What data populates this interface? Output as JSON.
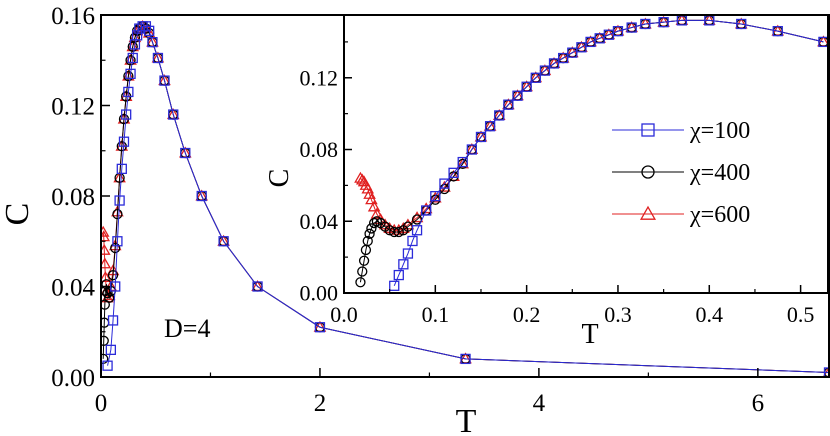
{
  "chart_data": [
    {
      "type": "line",
      "xlabel": "T",
      "ylabel": "C",
      "xlim": [
        0,
        6.65
      ],
      "ylim": [
        0,
        0.16
      ],
      "xticks": [
        0,
        2,
        4,
        6
      ],
      "yticks": [
        0.0,
        0.04,
        0.08,
        0.12,
        0.16
      ],
      "xtick_labels": [
        "0",
        "2",
        "4",
        "6"
      ],
      "ytick_labels": [
        "0.00",
        "0.04",
        "0.08",
        "0.12",
        "0.16"
      ],
      "annotation": "D=4",
      "series": [
        {
          "name": "χ=100",
          "color": "#2b2bd9",
          "marker": "square",
          "x": [
            0.06,
            0.09,
            0.11,
            0.13,
            0.15,
            0.17,
            0.19,
            0.21,
            0.23,
            0.25,
            0.27,
            0.29,
            0.31,
            0.33,
            0.35,
            0.38,
            0.41,
            0.44,
            0.47,
            0.52,
            0.58,
            0.66,
            0.77,
            0.92,
            1.12,
            1.43,
            2.0,
            3.33,
            6.65
          ],
          "y": [
            0.005,
            0.012,
            0.025,
            0.04,
            0.06,
            0.078,
            0.092,
            0.104,
            0.116,
            0.126,
            0.134,
            0.141,
            0.147,
            0.151,
            0.154,
            0.155,
            0.155,
            0.153,
            0.148,
            0.141,
            0.131,
            0.116,
            0.099,
            0.08,
            0.06,
            0.04,
            0.022,
            0.008,
            0.002
          ]
        },
        {
          "name": "χ=400",
          "color": "#000000",
          "marker": "circle",
          "x": [
            0.02,
            0.025,
            0.03,
            0.035,
            0.04,
            0.05,
            0.06,
            0.075,
            0.09,
            0.11,
            0.13,
            0.15,
            0.17,
            0.19,
            0.21,
            0.23,
            0.25,
            0.27,
            0.29,
            0.31,
            0.33,
            0.35,
            0.38,
            0.41,
            0.44,
            0.47,
            0.52,
            0.58,
            0.66,
            0.77,
            0.92,
            1.12,
            1.43,
            2.0,
            3.33,
            6.65
          ],
          "y": [
            0.008,
            0.016,
            0.024,
            0.032,
            0.038,
            0.041,
            0.037,
            0.035,
            0.038,
            0.045,
            0.057,
            0.072,
            0.088,
            0.102,
            0.114,
            0.124,
            0.133,
            0.14,
            0.146,
            0.15,
            0.153,
            0.154,
            0.155,
            0.154,
            0.152,
            0.148,
            0.141,
            0.131,
            0.116,
            0.099,
            0.08,
            0.06,
            0.04,
            0.022,
            0.008,
            0.002
          ]
        },
        {
          "name": "χ=600",
          "color": "#e02020",
          "marker": "triangle",
          "x": [
            0.02,
            0.025,
            0.03,
            0.035,
            0.04,
            0.05,
            0.06,
            0.075,
            0.09,
            0.11,
            0.13,
            0.15,
            0.17,
            0.19,
            0.21,
            0.23,
            0.25,
            0.27,
            0.29,
            0.31,
            0.33,
            0.35,
            0.38,
            0.41,
            0.44,
            0.47,
            0.52,
            0.58,
            0.66,
            0.77,
            0.92,
            1.12,
            1.43,
            2.0,
            3.33,
            6.65
          ],
          "y": [
            0.064,
            0.062,
            0.056,
            0.05,
            0.044,
            0.038,
            0.035,
            0.036,
            0.04,
            0.047,
            0.058,
            0.073,
            0.088,
            0.102,
            0.114,
            0.124,
            0.133,
            0.14,
            0.146,
            0.15,
            0.153,
            0.154,
            0.155,
            0.154,
            0.152,
            0.148,
            0.141,
            0.131,
            0.116,
            0.099,
            0.08,
            0.06,
            0.04,
            0.022,
            0.008,
            0.002
          ]
        }
      ]
    },
    {
      "type": "line",
      "xlabel": "T",
      "ylabel": "C",
      "xlim": [
        0,
        0.53
      ],
      "ylim": [
        0,
        0.155
      ],
      "xticks": [
        0.0,
        0.1,
        0.2,
        0.3,
        0.4,
        0.5
      ],
      "yticks": [
        0.0,
        0.04,
        0.08,
        0.12
      ],
      "xtick_labels": [
        "0.0",
        "0.1",
        "0.2",
        "0.3",
        "0.4",
        "0.5"
      ],
      "ytick_labels": [
        "0.00",
        "0.04",
        "0.08",
        "0.12"
      ],
      "legend": {
        "position": "center-right",
        "entries": [
          "χ=100",
          "χ=400",
          "χ=600"
        ]
      },
      "series": [
        {
          "name": "χ=100",
          "color": "#2b2bd9",
          "marker": "square",
          "x": [
            0.055,
            0.06,
            0.065,
            0.07,
            0.075,
            0.08,
            0.09,
            0.1,
            0.11,
            0.12,
            0.13,
            0.14,
            0.15,
            0.16,
            0.17,
            0.18,
            0.19,
            0.2,
            0.21,
            0.22,
            0.23,
            0.24,
            0.25,
            0.26,
            0.27,
            0.28,
            0.29,
            0.3,
            0.315,
            0.33,
            0.35,
            0.37,
            0.4,
            0.435,
            0.475,
            0.525
          ],
          "y": [
            0.004,
            0.01,
            0.016,
            0.022,
            0.029,
            0.035,
            0.046,
            0.054,
            0.061,
            0.067,
            0.073,
            0.08,
            0.087,
            0.093,
            0.099,
            0.105,
            0.11,
            0.115,
            0.12,
            0.124,
            0.128,
            0.131,
            0.134,
            0.137,
            0.14,
            0.142,
            0.144,
            0.146,
            0.148,
            0.15,
            0.151,
            0.152,
            0.152,
            0.15,
            0.146,
            0.14
          ]
        },
        {
          "name": "χ=400",
          "color": "#000000",
          "marker": "circle",
          "x": [
            0.018,
            0.02,
            0.022,
            0.024,
            0.026,
            0.028,
            0.03,
            0.033,
            0.036,
            0.04,
            0.045,
            0.05,
            0.055,
            0.06,
            0.065,
            0.07,
            0.08,
            0.09,
            0.1,
            0.11,
            0.12,
            0.13,
            0.14,
            0.15,
            0.16,
            0.17,
            0.18,
            0.19,
            0.2,
            0.21,
            0.22,
            0.23,
            0.24,
            0.25,
            0.26,
            0.27,
            0.28,
            0.29,
            0.3,
            0.315,
            0.33,
            0.35,
            0.37,
            0.4,
            0.435,
            0.475,
            0.525
          ],
          "y": [
            0.006,
            0.012,
            0.018,
            0.024,
            0.029,
            0.033,
            0.036,
            0.039,
            0.04,
            0.039,
            0.037,
            0.035,
            0.034,
            0.034,
            0.035,
            0.037,
            0.041,
            0.046,
            0.052,
            0.058,
            0.065,
            0.072,
            0.08,
            0.087,
            0.093,
            0.099,
            0.105,
            0.11,
            0.115,
            0.12,
            0.124,
            0.128,
            0.131,
            0.134,
            0.137,
            0.14,
            0.142,
            0.144,
            0.146,
            0.148,
            0.15,
            0.151,
            0.152,
            0.152,
            0.15,
            0.146,
            0.14
          ]
        },
        {
          "name": "χ=600",
          "color": "#e02020",
          "marker": "triangle",
          "x": [
            0.018,
            0.02,
            0.022,
            0.024,
            0.026,
            0.028,
            0.03,
            0.033,
            0.036,
            0.04,
            0.045,
            0.05,
            0.055,
            0.06,
            0.065,
            0.07,
            0.08,
            0.09,
            0.1,
            0.11,
            0.12,
            0.13,
            0.14,
            0.15,
            0.16,
            0.17,
            0.18,
            0.19,
            0.2,
            0.21,
            0.22,
            0.23,
            0.24,
            0.25,
            0.26,
            0.27,
            0.28,
            0.29,
            0.3,
            0.315,
            0.33,
            0.35,
            0.37,
            0.4,
            0.435,
            0.475,
            0.525
          ],
          "y": [
            0.064,
            0.063,
            0.062,
            0.06,
            0.058,
            0.055,
            0.052,
            0.048,
            0.044,
            0.041,
            0.038,
            0.036,
            0.035,
            0.035,
            0.036,
            0.038,
            0.042,
            0.047,
            0.053,
            0.059,
            0.065,
            0.072,
            0.08,
            0.087,
            0.093,
            0.099,
            0.105,
            0.11,
            0.115,
            0.12,
            0.124,
            0.128,
            0.131,
            0.134,
            0.137,
            0.14,
            0.142,
            0.144,
            0.146,
            0.148,
            0.15,
            0.151,
            0.152,
            0.152,
            0.15,
            0.146,
            0.14
          ]
        }
      ]
    }
  ]
}
